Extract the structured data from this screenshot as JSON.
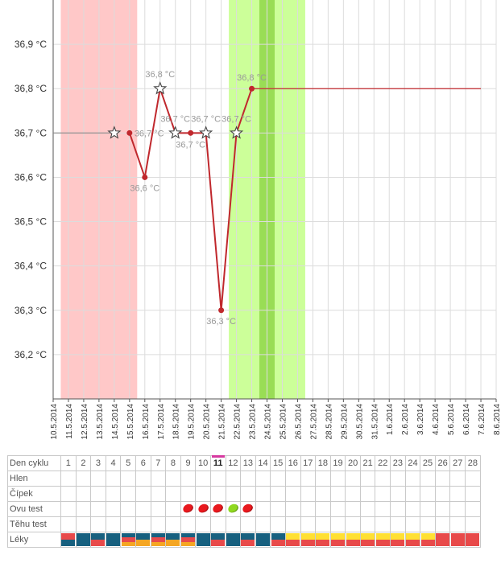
{
  "chart_data": {
    "type": "line",
    "y_ticks": [
      "36,9 °C",
      "36,8 °C",
      "36,7 °C",
      "36,6 °C",
      "36,5 °C",
      "36,4 °C",
      "36,3 °C",
      "36,2 °C"
    ],
    "y_tick_values": [
      36.9,
      36.8,
      36.7,
      36.6,
      36.5,
      36.4,
      36.3,
      36.2
    ],
    "ylim": [
      36.1,
      37.0
    ],
    "x_dates": [
      "10.5.2014",
      "11.5.2014",
      "12.5.2014",
      "13.5.2014",
      "14.5.2014",
      "15.5.2014",
      "16.5.2014",
      "17.5.2014",
      "18.5.2014",
      "19.5.2014",
      "20.5.2014",
      "21.5.2014",
      "22.5.2014",
      "23.5.2014",
      "24.5.2014",
      "25.5.2014",
      "26.5.2014",
      "27.5.2014",
      "28.5.2014",
      "29.5.2014",
      "30.5.2014",
      "31.5.2014",
      "1.6.2014",
      "2.6.2014",
      "3.6.2014",
      "4.6.2014",
      "5.6.2014",
      "6.6.2014",
      "7.6.2014",
      "8.6.2014"
    ],
    "grid": true,
    "regions": [
      {
        "from": "10.5.2014",
        "to": "15.5.2014",
        "color": "#ffc8c8"
      },
      {
        "from": "21.5.2014",
        "to": "26.5.2014",
        "color": "#ccff99"
      },
      {
        "from": "23.5.2014",
        "to": "24.5.2014",
        "color": "#99dd55"
      }
    ],
    "series": [
      {
        "color": "#c0282d",
        "points": [
          {
            "x": "15.5.2014",
            "y": 36.7,
            "label": "36,7 °C"
          },
          {
            "x": "16.5.2014",
            "y": 36.6,
            "label": "36,6 °C"
          },
          {
            "x": "17.5.2014",
            "y": 36.8,
            "label": "36,8 °C"
          },
          {
            "x": "18.5.2014",
            "y": 36.7,
            "label": "36,7 °C"
          },
          {
            "x": "19.5.2014",
            "y": 36.7,
            "label": "36,7 °C"
          },
          {
            "x": "20.5.2014",
            "y": 36.7,
            "label": "36,7 °C"
          },
          {
            "x": "21.5.2014",
            "y": 36.3,
            "label": "36,3 °C"
          },
          {
            "x": "22.5.2014",
            "y": 36.7,
            "label": "36,7 °C"
          },
          {
            "x": "23.5.2014",
            "y": 36.8,
            "label": "36,8 °C"
          }
        ]
      }
    ],
    "star_markers": [
      {
        "x": "14.5.2014",
        "y": 36.7
      },
      {
        "x": "17.5.2014",
        "y": 36.8
      },
      {
        "x": "18.5.2014",
        "y": 36.7
      },
      {
        "x": "20.5.2014",
        "y": 36.7
      },
      {
        "x": "22.5.2014",
        "y": 36.7
      }
    ],
    "reference_lines": [
      {
        "from": "10.5.2014",
        "to": "14.5.2014",
        "y": 36.7,
        "color": "#888888"
      },
      {
        "from": "23.5.2014",
        "to": "7.6.2014",
        "y": 36.8,
        "color": "#c0282d"
      }
    ]
  },
  "cycle_table": {
    "row_labels": [
      "Den cyklu",
      "Hlen",
      "Čípek",
      "Ovu test",
      "Těhu test",
      "Léky"
    ],
    "days": [
      "1",
      "2",
      "3",
      "4",
      "5",
      "6",
      "7",
      "8",
      "9",
      "10",
      "11",
      "12",
      "13",
      "14",
      "15",
      "16",
      "17",
      "18",
      "19",
      "20",
      "21",
      "22",
      "23",
      "24",
      "25",
      "26",
      "27",
      "28"
    ],
    "today_day": "11",
    "today_color": "#d63aa0",
    "ovu_tests": [
      {
        "day": "9",
        "color": "#e8191e"
      },
      {
        "day": "10",
        "color": "#e8191e"
      },
      {
        "day": "11",
        "color": "#e8191e"
      },
      {
        "day": "12",
        "color": "#8fd81f"
      },
      {
        "day": "13",
        "color": "#e8191e"
      }
    ],
    "leky": [
      [
        "#e84a4a",
        "#17607f"
      ],
      [
        "#17607f"
      ],
      [
        "#17607f",
        "#e84a4a"
      ],
      [
        "#17607f"
      ],
      [
        "#17607f",
        "#e84a4a",
        "#f5a623"
      ],
      [
        "#17607f",
        "#f5a623"
      ],
      [
        "#17607f",
        "#e84a4a",
        "#f5a623"
      ],
      [
        "#17607f",
        "#f5a623"
      ],
      [
        "#17607f",
        "#e84a4a",
        "#f5a623"
      ],
      [
        "#17607f"
      ],
      [
        "#17607f",
        "#e84a4a"
      ],
      [
        "#17607f"
      ],
      [
        "#17607f",
        "#e84a4a"
      ],
      [
        "#17607f"
      ],
      [
        "#17607f",
        "#e84a4a"
      ],
      [
        "#ffe033",
        "#e84a4a"
      ],
      [
        "#ffe033",
        "#e84a4a"
      ],
      [
        "#ffe033",
        "#e84a4a"
      ],
      [
        "#ffe033",
        "#e84a4a"
      ],
      [
        "#ffe033",
        "#e84a4a"
      ],
      [
        "#ffe033",
        "#e84a4a"
      ],
      [
        "#ffe033",
        "#e84a4a"
      ],
      [
        "#ffe033",
        "#e84a4a"
      ],
      [
        "#ffe033",
        "#e84a4a"
      ],
      [
        "#ffe033",
        "#e84a4a"
      ],
      [
        "#e84a4a"
      ],
      [
        "#e84a4a"
      ],
      [
        "#e84a4a"
      ]
    ]
  }
}
